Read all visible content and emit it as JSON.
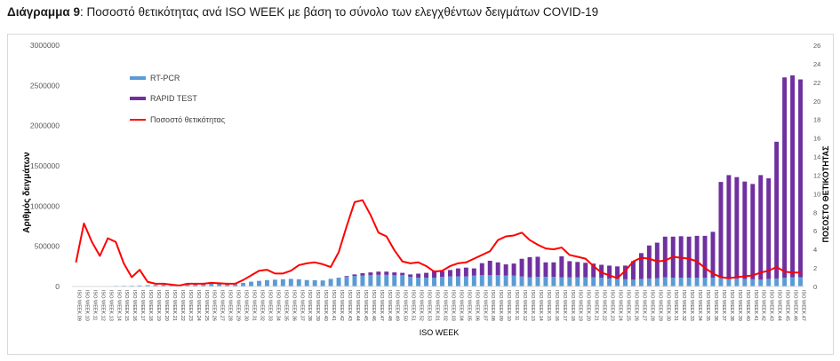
{
  "heading": {
    "prefix": "Διάγραμμα 9",
    "text": ": Ποσοστό θετικότητας ανά ISO WEEK με βάση το σύνολο των ελεγχθέντων δειγμάτων COVID-19"
  },
  "chart_data": {
    "type": "bar",
    "stacked": true,
    "xlabel": "ISO WEEK",
    "ylabel": "Αριθμός δειγμάτων",
    "y2label": "ΠΟΣΟΣΤΟ ΘΕΤΙΚΟΤΗΤΑΣ",
    "ylim": [
      0,
      3000000
    ],
    "yticks": [
      0,
      500000,
      1000000,
      1500000,
      2000000,
      2500000,
      3000000
    ],
    "y2lim": [
      0,
      26
    ],
    "y2ticks": [
      0,
      2,
      4,
      6,
      8,
      10,
      12,
      14,
      16,
      18,
      20,
      22,
      24,
      26
    ],
    "grid": false,
    "legend_position": "top-left",
    "categories": [
      "ISO WEEK.09",
      "ISO WEEK.10",
      "ISO WEEK.11",
      "ISO WEEK.12",
      "ISO WEEK.13",
      "ISO WEEK.14",
      "ISO WEEK.15",
      "ISO WEEK.16",
      "ISO WEEK.17",
      "ISO WEEK.18",
      "ISO WEEK.19",
      "ISO WEEK.20",
      "ISO WEEK.21",
      "ISO WEEK.22",
      "ISO WEEK.23",
      "ISO WEEK.24",
      "ISO WEEK.25",
      "ISO WEEK.26",
      "ISO WEEK.27",
      "ISO WEEK.28",
      "ISO WEEK.29",
      "ISO WEEK.30",
      "ISO WEEK.31",
      "ISO WEEK.32",
      "ISO WEEK.33",
      "ISO WEEK.34",
      "ISO WEEK.35",
      "ISO WEEK.36",
      "ISO WEEK.37",
      "ISO WEEK.38",
      "ISO WEEK.39",
      "ISO WEEK.40",
      "ISO WEEK.41",
      "ISO WEEK.42",
      "ISO WEEK.43",
      "ISO WEEK.44",
      "ISO WEEK.45",
      "ISO WEEK.46",
      "ISO WEEK.47",
      "ISO WEEK.48",
      "ISO WEEK.49",
      "ISO WEEK.50",
      "ISO WEEK.51",
      "ISO WEEK.52",
      "ISO WEEK.53",
      "ISO WEEK.01",
      "ISO WEEK.02",
      "ISO WEEK.03",
      "ISO WEEK.04",
      "ISO WEEK.05",
      "ISO WEEK.06",
      "ISO WEEK.07",
      "ISO WEEK.08",
      "ISO WEEK.09",
      "ISO WEEK.10",
      "ISO WEEK.11",
      "ISO WEEK.12",
      "ISO WEEK.13",
      "ISO WEEK.14",
      "ISO WEEK.15",
      "ISO WEEK.16",
      "ISO WEEK.17",
      "ISO WEEK.18",
      "ISO WEEK.19",
      "ISO WEEK.20",
      "ISO WEEK.21",
      "ISO WEEK.22",
      "ISO WEEK.23",
      "ISO WEEK.24",
      "ISO WEEK.25",
      "ISO WEEK.26",
      "ISO WEEK.27",
      "ISO WEEK.28",
      "ISO WEEK.29",
      "ISO WEEK.30",
      "ISO WEEK.31",
      "ISO WEEK.32",
      "ISO WEEK.33",
      "ISO WEEK.34",
      "ISO WEEK.35",
      "ISO WEEK.36",
      "ISO WEEK.37",
      "ISO WEEK.38",
      "ISO WEEK.39",
      "ISO WEEK.40",
      "ISO WEEK.41",
      "ISO WEEK.42",
      "ISO WEEK.43",
      "ISO WEEK.44",
      "ISO WEEK.45",
      "ISO WEEK.46",
      "ISO WEEK.47"
    ],
    "series": [
      {
        "name": "RT-PCR",
        "color": "#5b9bd5",
        "values": [
          1000,
          2000,
          3000,
          4000,
          6000,
          8000,
          9000,
          10000,
          13000,
          16000,
          20000,
          22000,
          22000,
          25000,
          27000,
          30000,
          33000,
          36000,
          40000,
          38000,
          35000,
          45000,
          60000,
          70000,
          80000,
          85000,
          90000,
          95000,
          90000,
          80000,
          78000,
          75000,
          95000,
          110000,
          120000,
          130000,
          135000,
          140000,
          145000,
          145000,
          140000,
          140000,
          120000,
          110000,
          110000,
          110000,
          120000,
          125000,
          125000,
          125000,
          135000,
          140000,
          140000,
          140000,
          135000,
          135000,
          125000,
          115000,
          120000,
          120000,
          120000,
          115000,
          115000,
          115000,
          115000,
          115000,
          110000,
          100000,
          95000,
          90000,
          85000,
          95000,
          100000,
          105000,
          115000,
          110000,
          110000,
          110000,
          110000,
          110000,
          110000,
          110000,
          105000,
          100000,
          95000,
          90000,
          85000,
          95000,
          100000,
          110000,
          115000,
          115000
        ]
      },
      {
        "name": "RAPID TEST",
        "color": "#7030a0",
        "values": [
          0,
          0,
          0,
          0,
          0,
          0,
          0,
          0,
          0,
          0,
          0,
          0,
          0,
          0,
          0,
          0,
          0,
          0,
          0,
          0,
          0,
          0,
          0,
          0,
          0,
          0,
          0,
          0,
          0,
          0,
          0,
          0,
          0,
          0,
          10000,
          20000,
          30000,
          35000,
          40000,
          40000,
          35000,
          30000,
          30000,
          50000,
          60000,
          90000,
          70000,
          80000,
          100000,
          110000,
          90000,
          150000,
          180000,
          160000,
          140000,
          150000,
          220000,
          250000,
          250000,
          180000,
          180000,
          260000,
          200000,
          190000,
          180000,
          170000,
          160000,
          160000,
          155000,
          170000,
          230000,
          320000,
          410000,
          440000,
          505000,
          510000,
          515000,
          510000,
          520000,
          520000,
          570000,
          1190000,
          1280000,
          1260000,
          1210000,
          1185000,
          1300000,
          1250000,
          1700000,
          2490000,
          2510000,
          2460000
        ]
      }
    ],
    "line_series": {
      "name": "Ποσοστό θετικότητας",
      "color": "#ff0000",
      "axis": "y2",
      "values": [
        2.6,
        6.8,
        4.8,
        3.3,
        5.2,
        4.8,
        2.5,
        1.0,
        1.8,
        0.5,
        0.3,
        0.3,
        0.2,
        0.1,
        0.3,
        0.3,
        0.3,
        0.4,
        0.35,
        0.3,
        0.3,
        0.7,
        1.2,
        1.7,
        1.8,
        1.4,
        1.4,
        1.7,
        2.3,
        2.5,
        2.6,
        2.4,
        2.1,
        3.7,
        6.5,
        9.1,
        9.3,
        7.7,
        5.8,
        5.4,
        3.9,
        2.7,
        2.5,
        2.6,
        2.2,
        1.6,
        1.7,
        2.2,
        2.5,
        2.6,
        3.0,
        3.4,
        3.8,
        5.0,
        5.4,
        5.5,
        5.8,
        5.0,
        4.5,
        4.1,
        4.0,
        4.2,
        3.4,
        3.2,
        3.0,
        2.2,
        1.5,
        1.2,
        0.9,
        1.7,
        2.7,
        3.1,
        3.0,
        2.7,
        2.8,
        3.2,
        3.1,
        3.0,
        2.7,
        2.0,
        1.4,
        1.0,
        0.9,
        1.0,
        1.1,
        1.2,
        1.5,
        1.7,
        2.1,
        1.6,
        1.5,
        1.5
      ]
    }
  }
}
